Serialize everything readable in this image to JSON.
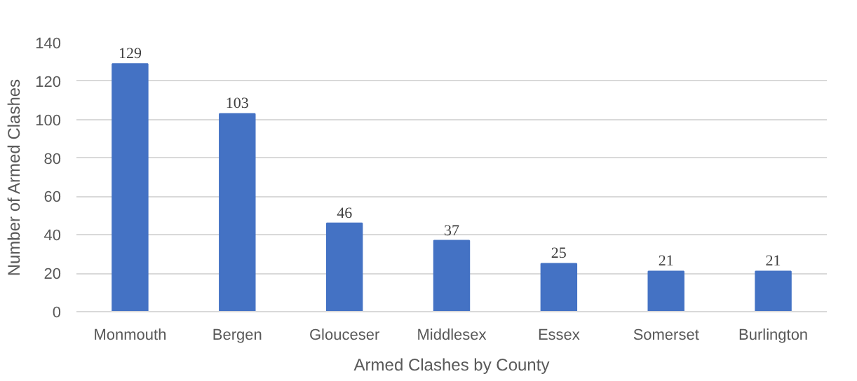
{
  "chart_data": {
    "type": "bar",
    "xlabel": "Armed Clashes by County",
    "ylabel": "Number of Armed Clashes",
    "categories": [
      "Monmouth",
      "Bergen",
      "Glouceser",
      "Middlesex",
      "Essex",
      "Somerset",
      "Burlington"
    ],
    "values": [
      129,
      103,
      46,
      37,
      25,
      21,
      21
    ],
    "color": "#4472c4",
    "ylim": [
      0,
      140
    ],
    "yticks": [
      0,
      20,
      40,
      60,
      80,
      100,
      120,
      140
    ],
    "grid": "y",
    "data_labels": true
  }
}
